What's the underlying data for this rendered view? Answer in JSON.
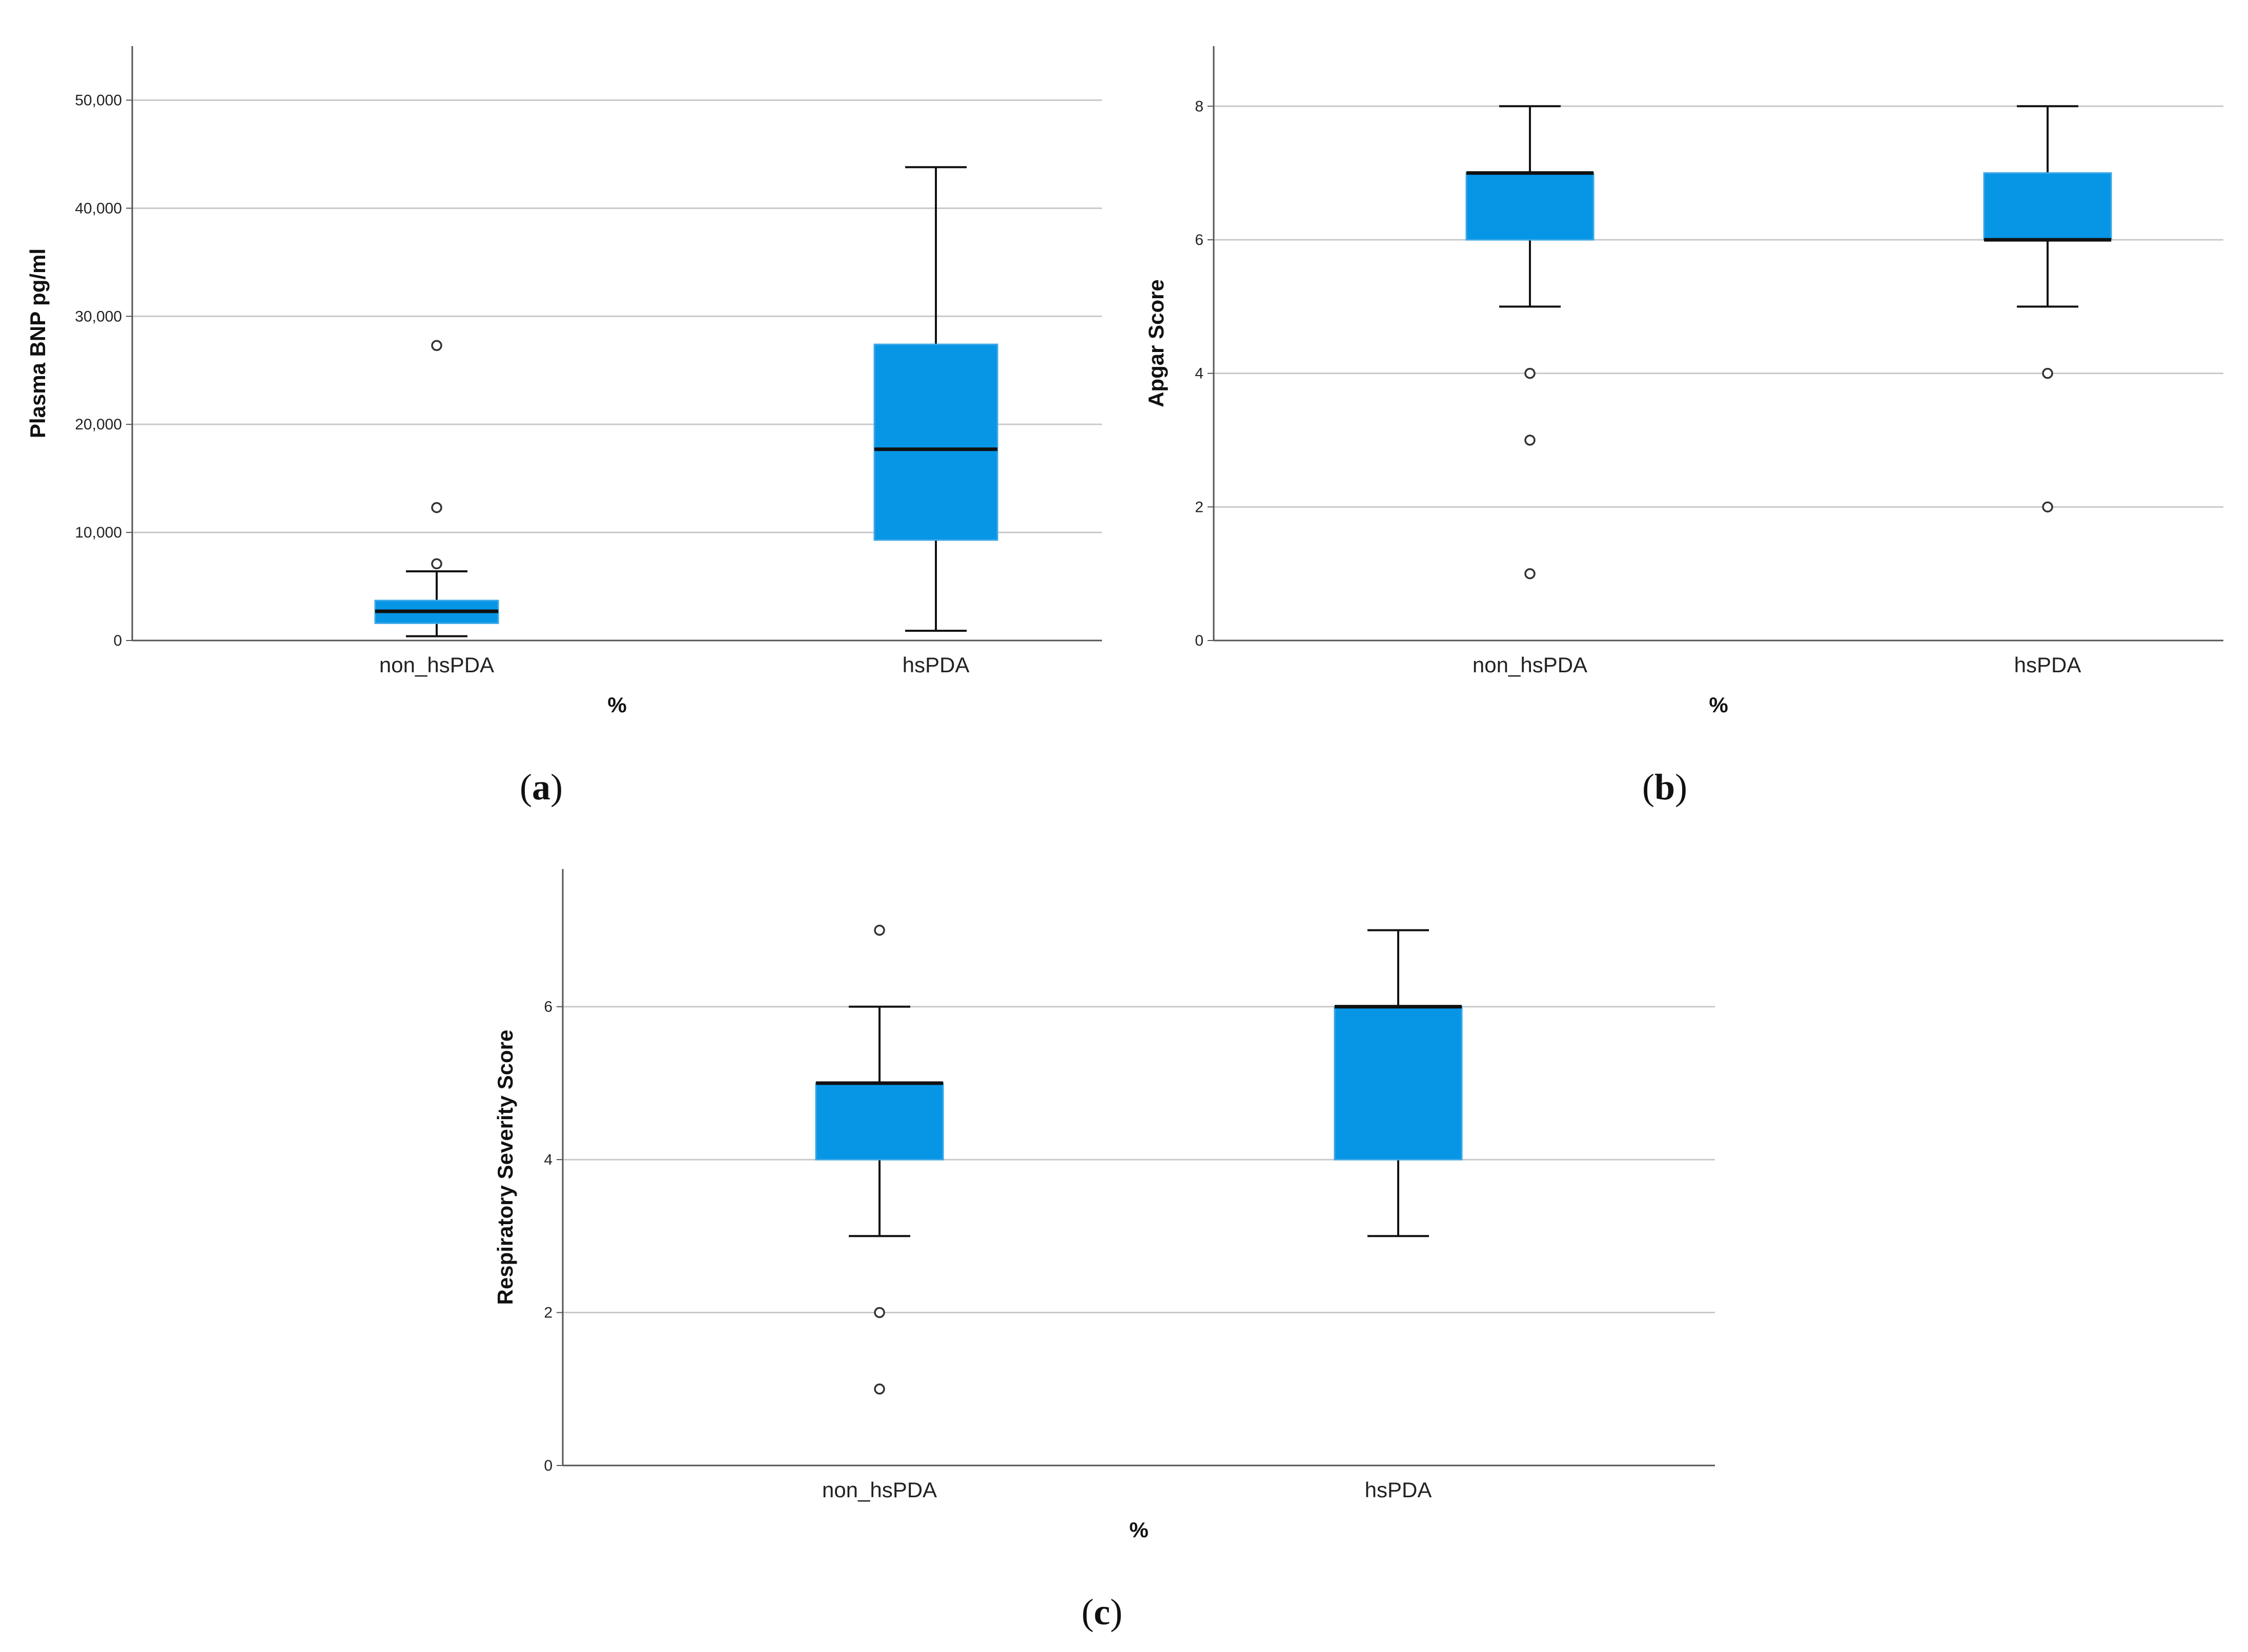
{
  "colors": {
    "box_fill": "#0795e6",
    "box_edge": "#3aa7e8",
    "line": "#111111",
    "grid": "#c9c9c9",
    "axis": "#555555"
  },
  "chart_data": [
    {
      "type": "box",
      "panel_label": "a",
      "ylabel": "Plasma  BNP pg/ml",
      "xlabel": "%",
      "ylim": [
        0,
        55000
      ],
      "yticks": [
        0,
        10000,
        20000,
        30000,
        40000,
        50000
      ],
      "ytick_labels": [
        "0",
        "10,000",
        "20,000",
        "30,000",
        "40,000",
        "50,000"
      ],
      "categories": [
        "non_hsPDA",
        "hsPDA"
      ],
      "boxes": [
        {
          "category": "non_hsPDA",
          "whisker_low": 400,
          "q1": 1600,
          "median": 2700,
          "q3": 3700,
          "whisker_high": 6400,
          "outliers": [
            7100,
            12300,
            27300
          ]
        },
        {
          "category": "hsPDA",
          "whisker_low": 900,
          "q1": 9300,
          "median": 17700,
          "q3": 27400,
          "whisker_high": 43800,
          "outliers": []
        }
      ]
    },
    {
      "type": "box",
      "panel_label": "b",
      "ylabel": "Apgar Score",
      "xlabel": "%",
      "ylim": [
        0,
        8.9
      ],
      "yticks": [
        0,
        2,
        4,
        6,
        8
      ],
      "ytick_labels": [
        "0",
        "2",
        "4",
        "6",
        "8"
      ],
      "categories": [
        "non_hsPDA",
        "hsPDA"
      ],
      "boxes": [
        {
          "category": "non_hsPDA",
          "whisker_low": 5,
          "q1": 6,
          "median": 7,
          "q3": 7,
          "whisker_high": 8,
          "outliers": [
            4,
            3,
            1
          ]
        },
        {
          "category": "hsPDA",
          "whisker_low": 5,
          "q1": 6,
          "median": 6,
          "q3": 7,
          "whisker_high": 8,
          "outliers": [
            4,
            2
          ]
        }
      ]
    },
    {
      "type": "box",
      "panel_label": "c",
      "ylabel": "Respiratory Severity Score",
      "xlabel": "%",
      "ylim": [
        0,
        7.8
      ],
      "yticks": [
        0,
        2,
        4,
        6
      ],
      "ytick_labels": [
        "0",
        "2",
        "4",
        "6"
      ],
      "categories": [
        "non_hsPDA",
        "hsPDA"
      ],
      "boxes": [
        {
          "category": "non_hsPDA",
          "whisker_low": 3,
          "q1": 4,
          "median": 5,
          "q3": 5,
          "whisker_high": 6,
          "outliers": [
            7,
            2,
            1
          ]
        },
        {
          "category": "hsPDA",
          "whisker_low": 3,
          "q1": 4,
          "median": 6,
          "q3": 6,
          "whisker_high": 7,
          "outliers": []
        }
      ]
    }
  ]
}
